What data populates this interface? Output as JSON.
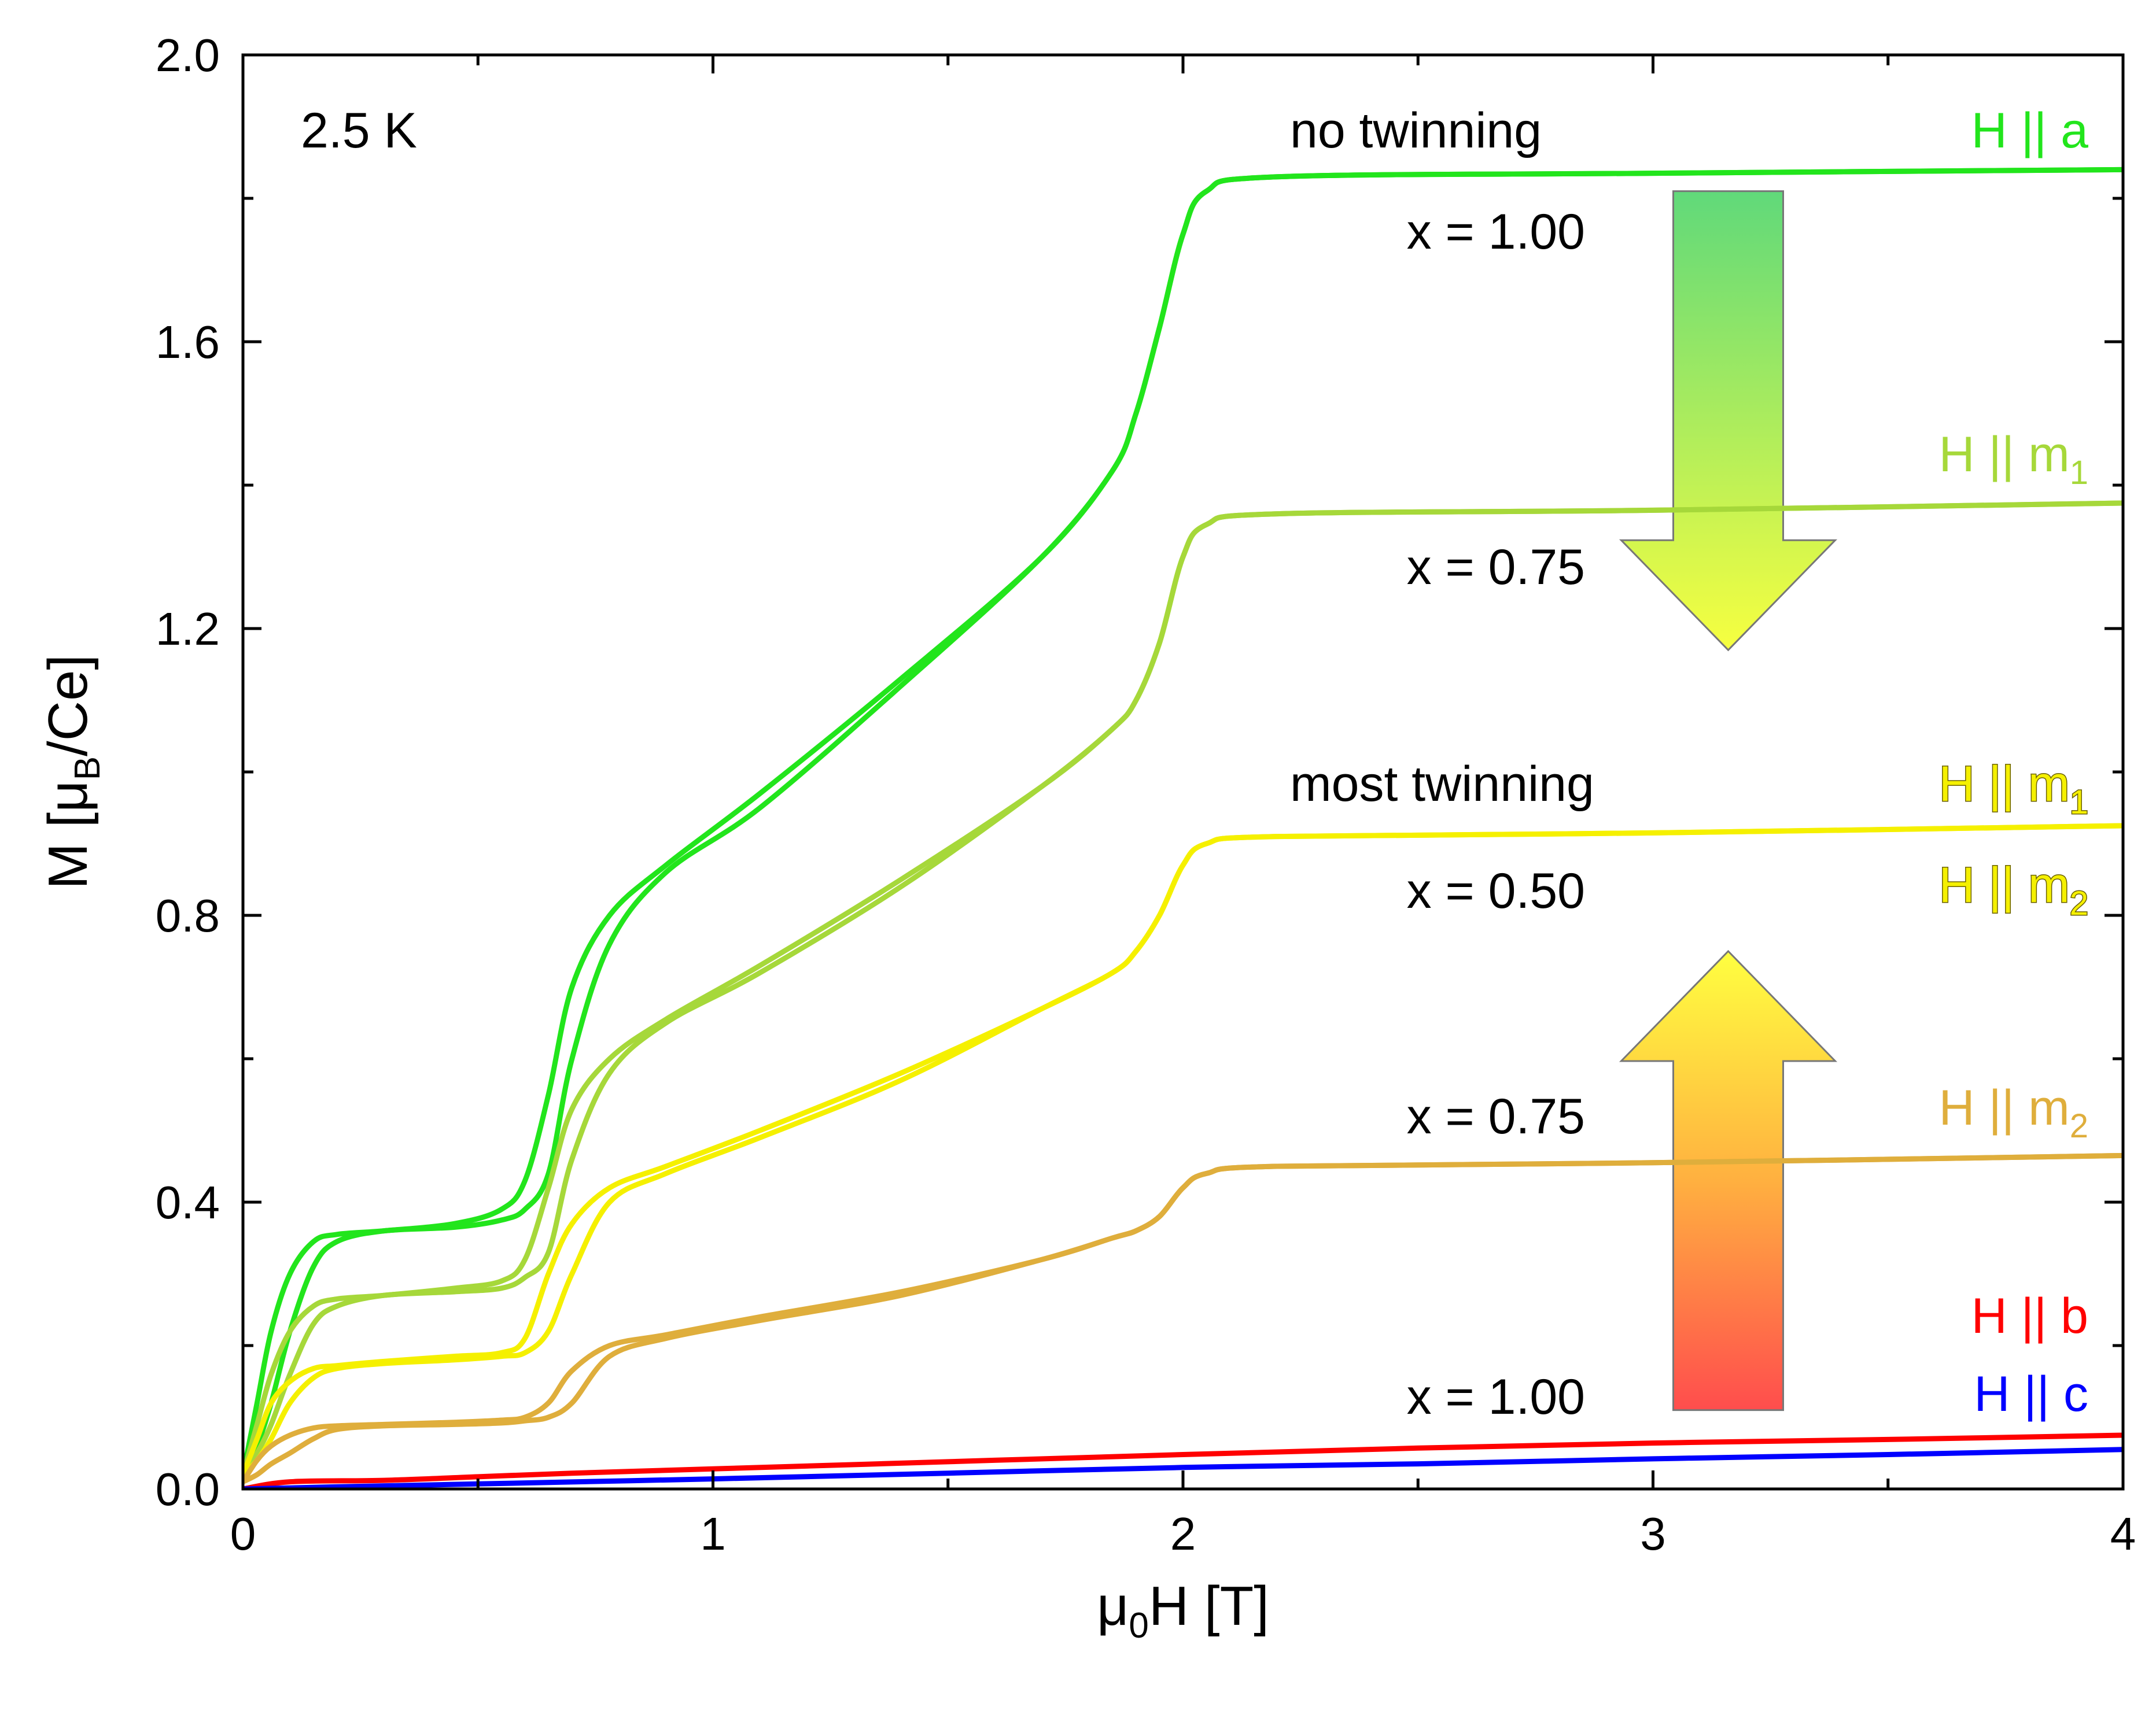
{
  "chart_data": {
    "type": "line",
    "title": "",
    "xlabel": "μ0H [T]",
    "xlabel_main": "μ",
    "xlabel_sub": "0",
    "xlabel_rest": "H [T]",
    "ylabel": "M [μB/Ce]",
    "ylabel_main": "M [μ",
    "ylabel_sub": "B",
    "ylabel_rest": "/Ce]",
    "xlim": [
      0,
      4
    ],
    "ylim": [
      0,
      2.0
    ],
    "xticks": [
      0,
      1,
      2,
      3,
      4
    ],
    "xtick_labels": [
      "0",
      "1",
      "2",
      "3",
      "4"
    ],
    "yticks": [
      0.0,
      0.4,
      0.8,
      1.2,
      1.6,
      2.0
    ],
    "ytick_labels": [
      "0.0",
      "0.4",
      "0.8",
      "1.2",
      "1.6",
      "2.0"
    ],
    "grid": false,
    "annotations": {
      "temperature": "2.5 K",
      "no_twinning": "no twinning",
      "most_twinning": "most twinning",
      "x_100_top": "x = 1.00",
      "x_075_top": "x = 0.75",
      "x_050": "x = 0.50",
      "x_075_bottom": "x = 0.75",
      "x_100_bottom": "x = 1.00"
    },
    "series": [
      {
        "name": "H || a",
        "label_main": "H || a",
        "label_sub": "",
        "color": "#22e51c",
        "x": [
          0,
          0.03,
          0.06,
          0.1,
          0.15,
          0.2,
          0.3,
          0.45,
          0.55,
          0.6,
          0.65,
          0.7,
          0.78,
          0.9,
          1.1,
          1.4,
          1.7,
          1.85,
          1.9,
          1.95,
          2.0,
          2.05,
          2.2,
          3.0,
          4.0
        ],
        "y": [
          0.02,
          0.12,
          0.22,
          0.3,
          0.345,
          0.355,
          0.36,
          0.37,
          0.39,
          0.43,
          0.55,
          0.7,
          0.8,
          0.87,
          0.97,
          1.13,
          1.3,
          1.42,
          1.5,
          1.62,
          1.75,
          1.81,
          1.83,
          1.835,
          1.84
        ],
        "y_sweep2": [
          0.02,
          0.06,
          0.12,
          0.22,
          0.31,
          0.345,
          0.36,
          0.365,
          0.375,
          0.39,
          0.44,
          0.6,
          0.76,
          0.86,
          0.95,
          1.12,
          1.3,
          1.42,
          1.5,
          1.62,
          1.75,
          1.81,
          1.83,
          1.835,
          1.84
        ]
      },
      {
        "name": "H || m1 (x = 0.75)",
        "label_main": "H || m",
        "label_sub": "1",
        "color": "#a6d83a",
        "x": [
          0,
          0.03,
          0.06,
          0.1,
          0.15,
          0.2,
          0.3,
          0.45,
          0.55,
          0.6,
          0.65,
          0.7,
          0.78,
          0.9,
          1.1,
          1.4,
          1.7,
          1.85,
          1.9,
          1.95,
          2.0,
          2.05,
          2.2,
          3.0,
          4.0
        ],
        "y": [
          0.02,
          0.09,
          0.16,
          0.22,
          0.255,
          0.265,
          0.27,
          0.28,
          0.29,
          0.32,
          0.42,
          0.53,
          0.6,
          0.655,
          0.73,
          0.85,
          0.98,
          1.06,
          1.1,
          1.18,
          1.3,
          1.345,
          1.36,
          1.365,
          1.375
        ],
        "y_sweep2": [
          0.02,
          0.05,
          0.09,
          0.16,
          0.23,
          0.255,
          0.27,
          0.275,
          0.28,
          0.295,
          0.33,
          0.46,
          0.58,
          0.65,
          0.72,
          0.84,
          0.98,
          1.06,
          1.1,
          1.18,
          1.3,
          1.345,
          1.36,
          1.365,
          1.375
        ]
      },
      {
        "name": "H || m1 / H || m2 (x = 0.50)",
        "label_main": "H || m",
        "label_sub": "1",
        "color": "#f5f000",
        "x": [
          0,
          0.03,
          0.06,
          0.1,
          0.15,
          0.2,
          0.3,
          0.45,
          0.55,
          0.6,
          0.65,
          0.7,
          0.78,
          0.9,
          1.1,
          1.4,
          1.7,
          1.85,
          1.9,
          1.95,
          2.0,
          2.05,
          2.2,
          3.0,
          4.0
        ],
        "y": [
          0.02,
          0.07,
          0.12,
          0.15,
          0.168,
          0.172,
          0.178,
          0.185,
          0.19,
          0.21,
          0.3,
          0.37,
          0.42,
          0.45,
          0.5,
          0.58,
          0.67,
          0.72,
          0.75,
          0.8,
          0.87,
          0.9,
          0.91,
          0.915,
          0.925
        ],
        "y_sweep2": [
          0.02,
          0.04,
          0.07,
          0.12,
          0.155,
          0.168,
          0.175,
          0.18,
          0.185,
          0.19,
          0.22,
          0.3,
          0.4,
          0.44,
          0.49,
          0.57,
          0.67,
          0.72,
          0.75,
          0.8,
          0.87,
          0.9,
          0.91,
          0.915,
          0.925
        ]
      },
      {
        "name": "H || m2 (x = 0.75)",
        "label_main": "H || m",
        "label_sub": "2",
        "color": "#dfae3c",
        "x": [
          0,
          0.03,
          0.06,
          0.1,
          0.15,
          0.2,
          0.3,
          0.45,
          0.55,
          0.6,
          0.65,
          0.7,
          0.78,
          0.9,
          1.1,
          1.4,
          1.7,
          1.85,
          1.9,
          1.95,
          2.0,
          2.05,
          2.2,
          3.0,
          4.0
        ],
        "y": [
          0.01,
          0.04,
          0.06,
          0.075,
          0.085,
          0.088,
          0.09,
          0.093,
          0.096,
          0.1,
          0.12,
          0.165,
          0.2,
          0.215,
          0.24,
          0.275,
          0.32,
          0.35,
          0.36,
          0.38,
          0.42,
          0.44,
          0.45,
          0.455,
          0.465
        ],
        "y_sweep2": [
          0.01,
          0.02,
          0.035,
          0.05,
          0.07,
          0.083,
          0.088,
          0.09,
          0.092,
          0.095,
          0.1,
          0.12,
          0.185,
          0.21,
          0.235,
          0.27,
          0.32,
          0.35,
          0.36,
          0.38,
          0.42,
          0.44,
          0.45,
          0.455,
          0.465
        ]
      },
      {
        "name": "H || b",
        "label_main": "H || b",
        "label_sub": "",
        "color": "#ff0000",
        "x": [
          0,
          0.1,
          0.3,
          0.5,
          0.7,
          1.0,
          1.5,
          2.0,
          2.5,
          3.0,
          3.5,
          4.0
        ],
        "y": [
          0.0,
          0.01,
          0.012,
          0.017,
          0.022,
          0.028,
          0.038,
          0.048,
          0.057,
          0.064,
          0.069,
          0.075
        ]
      },
      {
        "name": "H || c",
        "label_main": "H || c",
        "label_sub": "",
        "color": "#0000ff",
        "x": [
          0,
          0.2,
          0.5,
          1.0,
          1.5,
          2.0,
          2.5,
          3.0,
          3.5,
          4.0
        ],
        "y": [
          0.0,
          0.003,
          0.007,
          0.014,
          0.022,
          0.03,
          0.035,
          0.042,
          0.048,
          0.055
        ]
      }
    ],
    "series_labels": [
      {
        "main": "H || a",
        "sub": "",
        "color": "#22e51c"
      },
      {
        "main": "H || m",
        "sub": "1",
        "color": "#a6d83a"
      },
      {
        "main": "H || m",
        "sub": "1",
        "color": "#f5f000"
      },
      {
        "main": "H || m",
        "sub": "2",
        "color": "#f5f000"
      },
      {
        "main": "H || m",
        "sub": "2",
        "color": "#dfae3c"
      },
      {
        "main": "H || b",
        "sub": "",
        "color": "#ff0000"
      },
      {
        "main": "H || c",
        "sub": "",
        "color": "#0000ff"
      }
    ],
    "arrows": [
      {
        "direction": "down",
        "from_y": 1.81,
        "to_y": 1.17,
        "x": 3.16,
        "colors": [
          "#60d97a",
          "#f7ff40"
        ]
      },
      {
        "direction": "up",
        "from_y": 0.11,
        "to_y": 0.75,
        "x": 3.16,
        "colors": [
          "#ff4d4d",
          "#ffff40"
        ]
      }
    ]
  }
}
